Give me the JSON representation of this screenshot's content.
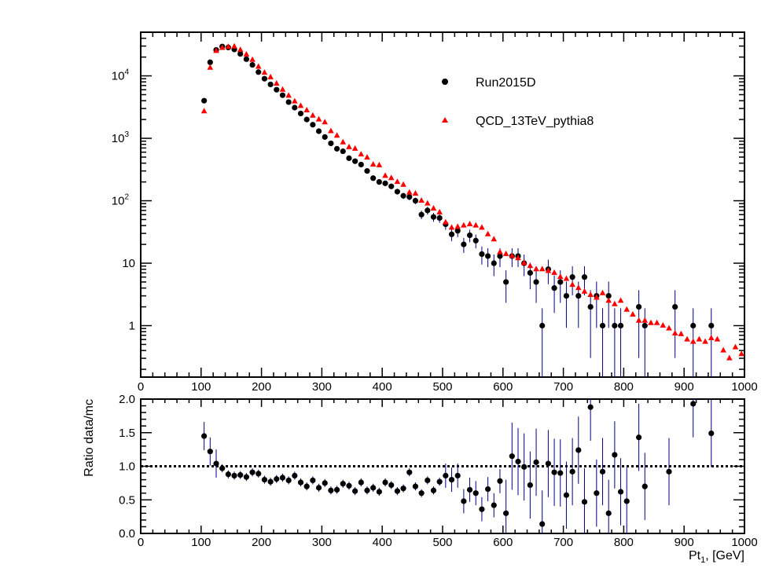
{
  "chart_data": [
    {
      "type": "scatter",
      "title": "",
      "xlabel": "",
      "ylabel": "",
      "xlim": [
        0,
        1000
      ],
      "ylim": [
        0.15,
        50000
      ],
      "yscale": "log",
      "x_ticks": [
        "0",
        "100",
        "200",
        "300",
        "400",
        "500",
        "600",
        "700",
        "800",
        "900",
        "1000"
      ],
      "y_ticks": [
        {
          "value": 1,
          "label": "1",
          "exp": ""
        },
        {
          "value": 10,
          "label": "10",
          "exp": ""
        },
        {
          "value": 100,
          "label": "10",
          "exp": "2"
        },
        {
          "value": 1000,
          "label": "10",
          "exp": "3"
        },
        {
          "value": 10000,
          "label": "10",
          "exp": "4"
        }
      ],
      "legend_position": "top-right",
      "series": [
        {
          "name": "Run2015D",
          "marker": "circle",
          "color": "#000000",
          "error_color": "#000080",
          "points": [
            [
              105,
              4000
            ],
            [
              115,
              16500
            ],
            [
              125,
              26000
            ],
            [
              135,
              29500
            ],
            [
              145,
              28500
            ],
            [
              155,
              26500
            ],
            [
              165,
              22500
            ],
            [
              175,
              18500
            ],
            [
              185,
              15000
            ],
            [
              195,
              11500
            ],
            [
              205,
              9000
            ],
            [
              215,
              7300
            ],
            [
              225,
              6000
            ],
            [
              235,
              4900
            ],
            [
              245,
              3800
            ],
            [
              255,
              3100
            ],
            [
              265,
              2500
            ],
            [
              275,
              2000
            ],
            [
              285,
              1650
            ],
            [
              295,
              1300
            ],
            [
              305,
              1050
            ],
            [
              315,
              830
            ],
            [
              325,
              680
            ],
            [
              335,
              620
            ],
            [
              345,
              480
            ],
            [
              355,
              430
            ],
            [
              365,
              380
            ],
            [
              375,
              300
            ],
            [
              385,
              230
            ],
            [
              395,
              200
            ],
            [
              405,
              190
            ],
            [
              415,
              170
            ],
            [
              425,
              140
            ],
            [
              435,
              120
            ],
            [
              445,
              115
            ],
            [
              455,
              100
            ],
            [
              465,
              60
            ],
            [
              475,
              70
            ],
            [
              485,
              55
            ],
            [
              495,
              53
            ],
            [
              505,
              42
            ],
            [
              515,
              29
            ],
            [
              525,
              33
            ],
            [
              535,
              20
            ],
            [
              545,
              28
            ],
            [
              555,
              23
            ],
            [
              565,
              14
            ],
            [
              575,
              13
            ],
            [
              585,
              10
            ],
            [
              595,
              13
            ],
            [
              605,
              5
            ],
            [
              615,
              13
            ],
            [
              625,
              13
            ],
            [
              635,
              10
            ],
            [
              645,
              7
            ],
            [
              655,
              5
            ],
            [
              665,
              1
            ],
            [
              675,
              8
            ],
            [
              685,
              4
            ],
            [
              695,
              5
            ],
            [
              705,
              3
            ],
            [
              715,
              6
            ],
            [
              725,
              3
            ],
            [
              735,
              6
            ],
            [
              745,
              2
            ],
            [
              755,
              3
            ],
            [
              765,
              1
            ],
            [
              775,
              3
            ],
            [
              785,
              1
            ],
            [
              795,
              1
            ],
            [
              825,
              2
            ],
            [
              835,
              1
            ],
            [
              885,
              2
            ],
            [
              915,
              1
            ],
            [
              945,
              1
            ]
          ]
        },
        {
          "name": "QCD_13TeV_pythia8",
          "marker": "triangle",
          "color": "#ff0000",
          "points": [
            [
              105,
              2700
            ],
            [
              115,
              13500
            ],
            [
              125,
              25000
            ],
            [
              135,
              28000
            ],
            [
              145,
              29000
            ],
            [
              155,
              29500
            ],
            [
              165,
              26000
            ],
            [
              175,
              22000
            ],
            [
              185,
              18000
            ],
            [
              195,
              14000
            ],
            [
              205,
              11200
            ],
            [
              215,
              9500
            ],
            [
              225,
              7500
            ],
            [
              235,
              6000
            ],
            [
              245,
              4800
            ],
            [
              255,
              3900
            ],
            [
              265,
              3300
            ],
            [
              275,
              2800
            ],
            [
              285,
              2300
            ],
            [
              295,
              2000
            ],
            [
              305,
              1800
            ],
            [
              315,
              1300
            ],
            [
              325,
              1100
            ],
            [
              335,
              860
            ],
            [
              345,
              720
            ],
            [
              355,
              680
            ],
            [
              365,
              550
            ],
            [
              375,
              490
            ],
            [
              385,
              380
            ],
            [
              395,
              370
            ],
            [
              405,
              250
            ],
            [
              415,
              230
            ],
            [
              425,
              200
            ],
            [
              435,
              180
            ],
            [
              445,
              135
            ],
            [
              455,
              130
            ],
            [
              465,
              100
            ],
            [
              475,
              90
            ],
            [
              485,
              75
            ],
            [
              495,
              65
            ],
            [
              505,
              45
            ],
            [
              515,
              37
            ],
            [
              525,
              38
            ],
            [
              535,
              40
            ],
            [
              545,
              42
            ],
            [
              555,
              40
            ],
            [
              565,
              37
            ],
            [
              575,
              29
            ],
            [
              585,
              24
            ],
            [
              595,
              15
            ],
            [
              605,
              14
            ],
            [
              615,
              13
            ],
            [
              625,
              12
            ],
            [
              635,
              10
            ],
            [
              645,
              9
            ],
            [
              655,
              8
            ],
            [
              665,
              8
            ],
            [
              675,
              7.5
            ],
            [
              685,
              7
            ],
            [
              695,
              6
            ],
            [
              705,
              5.6
            ],
            [
              715,
              4.5
            ],
            [
              725,
              4
            ],
            [
              735,
              3.5
            ],
            [
              745,
              3.1
            ],
            [
              755,
              2.8
            ],
            [
              765,
              3.3
            ],
            [
              775,
              2.5
            ],
            [
              785,
              2.2
            ],
            [
              795,
              2.5
            ],
            [
              805,
              1.8
            ],
            [
              815,
              1.5
            ],
            [
              825,
              1.2
            ],
            [
              835,
              1.2
            ],
            [
              845,
              1.1
            ],
            [
              855,
              1.1
            ],
            [
              865,
              1
            ],
            [
              875,
              0.9
            ],
            [
              885,
              0.75
            ],
            [
              895,
              0.73
            ],
            [
              905,
              0.6
            ],
            [
              915,
              0.55
            ],
            [
              925,
              0.6
            ],
            [
              935,
              0.55
            ],
            [
              945,
              0.63
            ],
            [
              955,
              0.6
            ],
            [
              965,
              0.4
            ],
            [
              975,
              0.3
            ],
            [
              985,
              0.45
            ],
            [
              995,
              0.35
            ]
          ]
        }
      ]
    },
    {
      "type": "scatter",
      "title": "",
      "xlabel": "Pt",
      "xlabel_sub": "1",
      "xlabel_suffix": ", [GeV]",
      "ylabel": "Ratio data/mc",
      "xlim": [
        0,
        1000
      ],
      "ylim": [
        0,
        2
      ],
      "x_ticks": [
        "0",
        "100",
        "200",
        "300",
        "400",
        "500",
        "600",
        "700",
        "800",
        "900",
        "1000"
      ],
      "y_ticks": [
        "0.0",
        "0.5",
        "1.0",
        "1.5",
        "2.0"
      ],
      "reference_line": 1.0,
      "series": [
        {
          "name": "",
          "marker": "circle",
          "color": "#000000",
          "error_color": "#000080",
          "points": [
            [
              105,
              1.45
            ],
            [
              115,
              1.22
            ],
            [
              125,
              1.04
            ],
            [
              135,
              0.97
            ],
            [
              145,
              0.88
            ],
            [
              155,
              0.86
            ],
            [
              165,
              0.87
            ],
            [
              175,
              0.84
            ],
            [
              185,
              0.91
            ],
            [
              195,
              0.89
            ],
            [
              205,
              0.8
            ],
            [
              215,
              0.77
            ],
            [
              225,
              0.81
            ],
            [
              235,
              0.83
            ],
            [
              245,
              0.79
            ],
            [
              255,
              0.86
            ],
            [
              265,
              0.76
            ],
            [
              275,
              0.7
            ],
            [
              285,
              0.79
            ],
            [
              295,
              0.68
            ],
            [
              305,
              0.75
            ],
            [
              315,
              0.64
            ],
            [
              325,
              0.65
            ],
            [
              335,
              0.74
            ],
            [
              345,
              0.71
            ],
            [
              355,
              0.63
            ],
            [
              365,
              0.76
            ],
            [
              375,
              0.64
            ],
            [
              385,
              0.68
            ],
            [
              395,
              0.62
            ],
            [
              405,
              0.76
            ],
            [
              415,
              0.72
            ],
            [
              425,
              0.63
            ],
            [
              435,
              0.67
            ],
            [
              445,
              0.91
            ],
            [
              455,
              0.7
            ],
            [
              465,
              0.6
            ],
            [
              475,
              0.79
            ],
            [
              485,
              0.64
            ],
            [
              495,
              0.77
            ],
            [
              505,
              0.86
            ],
            [
              515,
              0.8
            ],
            [
              525,
              0.86
            ],
            [
              535,
              0.48
            ],
            [
              545,
              0.65
            ],
            [
              555,
              0.6
            ],
            [
              565,
              0.36
            ],
            [
              575,
              0.66
            ],
            [
              585,
              0.42
            ],
            [
              595,
              0.78
            ],
            [
              605,
              0.3
            ],
            [
              615,
              1.15
            ],
            [
              625,
              1.07
            ],
            [
              635,
              0.99
            ],
            [
              645,
              0.72
            ],
            [
              655,
              1.06
            ],
            [
              665,
              0.14
            ],
            [
              675,
              1.04
            ],
            [
              685,
              0.91
            ],
            [
              695,
              0.9
            ],
            [
              705,
              0.57
            ],
            [
              715,
              0.92
            ],
            [
              725,
              1.24
            ],
            [
              735,
              0.47
            ],
            [
              745,
              1.88
            ],
            [
              755,
              0.6
            ],
            [
              765,
              0.92
            ],
            [
              775,
              0.3
            ],
            [
              785,
              1.17
            ],
            [
              795,
              0.62
            ],
            [
              805,
              0.48
            ],
            [
              825,
              1.43
            ],
            [
              835,
              0.7
            ],
            [
              875,
              0.92
            ],
            [
              915,
              1.93
            ],
            [
              945,
              1.49
            ]
          ]
        }
      ]
    }
  ],
  "legend": {
    "entries": [
      "Run2015D",
      "QCD_13TeV_pythia8"
    ]
  }
}
